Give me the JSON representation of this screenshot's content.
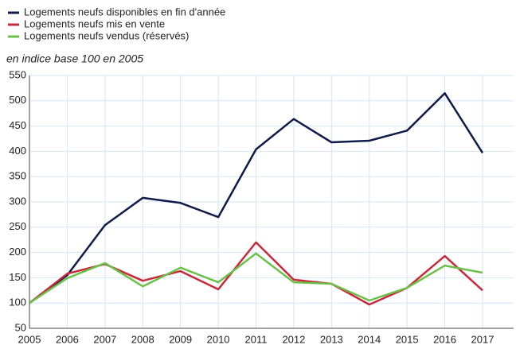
{
  "chart_data": {
    "type": "line",
    "subtitle": "en indice base 100 en 2005",
    "x": [
      2005,
      2006,
      2007,
      2008,
      2009,
      2010,
      2011,
      2012,
      2013,
      2014,
      2015,
      2016,
      2017
    ],
    "xlim": [
      2005,
      2017
    ],
    "xticks": [
      2005,
      2006,
      2007,
      2008,
      2009,
      2010,
      2011,
      2012,
      2013,
      2014,
      2015,
      2016,
      2017
    ],
    "ylim": [
      50,
      550
    ],
    "yticks": [
      50,
      100,
      150,
      200,
      250,
      300,
      350,
      400,
      450,
      500,
      550
    ],
    "grid": true,
    "series": [
      {
        "name": "Logements neufs disponibles en fin d'année",
        "color": "#0f1b4a",
        "values": [
          100,
          155,
          254,
          308,
          298,
          270,
          404,
          464,
          418,
          421,
          441,
          515,
          397
        ]
      },
      {
        "name": "Logements neufs mis en vente",
        "color": "#c8283a",
        "values": [
          100,
          158,
          177,
          144,
          163,
          127,
          220,
          146,
          138,
          97,
          130,
          193,
          125
        ]
      },
      {
        "name": "Logements neufs vendus (réservés)",
        "color": "#6cc04a",
        "values": [
          100,
          149,
          179,
          133,
          170,
          141,
          198,
          141,
          138,
          105,
          130,
          174,
          160
        ]
      }
    ]
  }
}
